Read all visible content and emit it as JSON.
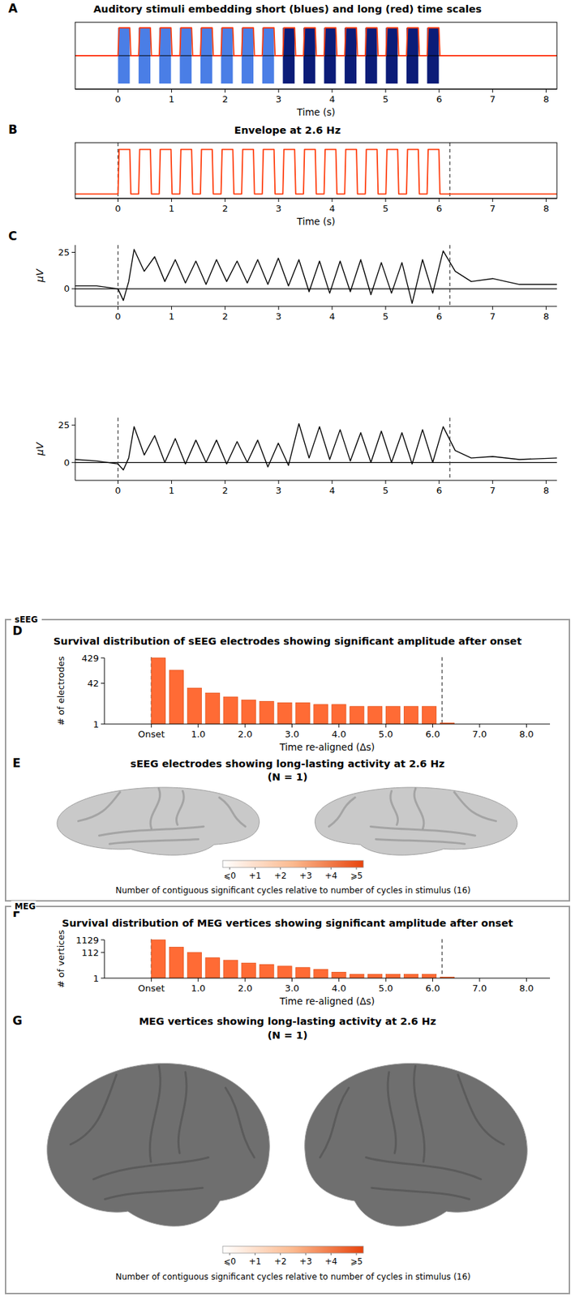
{
  "chart_data": [
    {
      "panel": "A",
      "type": "line",
      "title": "Auditory stimuli embedding short (blues) and long (red) time scales",
      "xlabel": "Time (s)",
      "x": [
        -0.8,
        0,
        0.02,
        0.22,
        0.24,
        0.385,
        0.405,
        0.605,
        0.625,
        0.77,
        0.79,
        0.99,
        1.01,
        1.155,
        1.175,
        1.375,
        1.395,
        1.54,
        1.56,
        1.76,
        1.78,
        1.925,
        1.945,
        2.145,
        2.165,
        2.31,
        2.33,
        2.53,
        2.55,
        2.695,
        2.715,
        2.915,
        2.935,
        3.08,
        3.1,
        3.3,
        3.32,
        3.465,
        3.485,
        3.685,
        3.705,
        3.85,
        3.87,
        4.07,
        4.09,
        4.235,
        4.255,
        4.455,
        4.475,
        4.62,
        4.64,
        4.84,
        4.86,
        5.005,
        5.025,
        5.225,
        5.245,
        5.39,
        5.41,
        5.61,
        5.63,
        5.775,
        5.795,
        5.995,
        6.015,
        8.2
      ],
      "values": [
        0,
        0,
        1,
        1,
        0,
        0,
        1,
        1,
        0,
        0,
        1,
        1,
        0,
        0,
        1,
        1,
        0,
        0,
        1,
        1,
        0,
        0,
        1,
        1,
        0,
        0,
        1,
        1,
        0,
        0,
        1,
        1,
        0,
        0,
        1,
        1,
        0,
        0,
        1,
        1,
        0,
        0,
        1,
        1,
        0,
        0,
        1,
        1,
        0,
        0,
        1,
        1,
        0,
        0,
        1,
        1,
        0,
        0,
        1,
        1,
        0,
        0,
        1,
        1,
        0,
        0
      ],
      "color": "#ff3d0d",
      "bursts": [
        {
          "start": 0,
          "end": 0.22,
          "color": "#4a7ee6"
        },
        {
          "start": 0.385,
          "end": 0.605,
          "color": "#4a7ee6"
        },
        {
          "start": 0.77,
          "end": 0.99,
          "color": "#4a7ee6"
        },
        {
          "start": 1.155,
          "end": 1.375,
          "color": "#4a7ee6"
        },
        {
          "start": 1.54,
          "end": 1.76,
          "color": "#4a7ee6"
        },
        {
          "start": 1.925,
          "end": 2.145,
          "color": "#4a7ee6"
        },
        {
          "start": 2.31,
          "end": 2.53,
          "color": "#4a7ee6"
        },
        {
          "start": 2.695,
          "end": 2.915,
          "color": "#4a7ee6"
        },
        {
          "start": 3.08,
          "end": 3.3,
          "color": "#0b1c78"
        },
        {
          "start": 3.465,
          "end": 3.685,
          "color": "#0b1c78"
        },
        {
          "start": 3.85,
          "end": 4.07,
          "color": "#0b1c78"
        },
        {
          "start": 4.235,
          "end": 4.455,
          "color": "#0b1c78"
        },
        {
          "start": 4.62,
          "end": 4.84,
          "color": "#0b1c78"
        },
        {
          "start": 5.005,
          "end": 5.225,
          "color": "#0b1c78"
        },
        {
          "start": 5.39,
          "end": 5.61,
          "color": "#0b1c78"
        },
        {
          "start": 5.775,
          "end": 5.995,
          "color": "#0b1c78"
        }
      ],
      "burst_range": [
        -1,
        1
      ],
      "hlines": [
        0
      ],
      "xlim": [
        -0.8,
        8.2
      ],
      "ylim": [
        -1.2,
        1.2
      ],
      "xticks": [
        0,
        1,
        2,
        3,
        4,
        5,
        6,
        7,
        8
      ],
      "tick_labels": "x"
    },
    {
      "panel": "B",
      "type": "line",
      "title": "Envelope at 2.6 Hz",
      "xlabel": "Time (s)",
      "x": [
        -0.8,
        0,
        0.02,
        0.22,
        0.24,
        0.385,
        0.405,
        0.605,
        0.625,
        0.77,
        0.79,
        0.99,
        1.01,
        1.155,
        1.175,
        1.375,
        1.395,
        1.54,
        1.56,
        1.76,
        1.78,
        1.925,
        1.945,
        2.145,
        2.165,
        2.31,
        2.33,
        2.53,
        2.55,
        2.695,
        2.715,
        2.915,
        2.935,
        3.08,
        3.1,
        3.3,
        3.32,
        3.465,
        3.485,
        3.685,
        3.705,
        3.85,
        3.87,
        4.07,
        4.09,
        4.235,
        4.255,
        4.455,
        4.475,
        4.62,
        4.64,
        4.84,
        4.86,
        5.005,
        5.025,
        5.225,
        5.245,
        5.39,
        5.41,
        5.61,
        5.63,
        5.775,
        5.795,
        5.995,
        6.015,
        8.2
      ],
      "values": [
        0,
        0,
        1,
        1,
        0,
        0,
        1,
        1,
        0,
        0,
        1,
        1,
        0,
        0,
        1,
        1,
        0,
        0,
        1,
        1,
        0,
        0,
        1,
        1,
        0,
        0,
        1,
        1,
        0,
        0,
        1,
        1,
        0,
        0,
        1,
        1,
        0,
        0,
        1,
        1,
        0,
        0,
        1,
        1,
        0,
        0,
        1,
        1,
        0,
        0,
        1,
        1,
        0,
        0,
        1,
        1,
        0,
        0,
        1,
        1,
        0,
        0,
        1,
        1,
        0,
        0
      ],
      "color": "#ff3d0d",
      "vlines": [
        0,
        6.2
      ],
      "xlim": [
        -0.8,
        8.2
      ],
      "ylim": [
        -0.1,
        1.15
      ],
      "xticks": [
        0,
        1,
        2,
        3,
        4,
        5,
        6,
        7,
        8
      ],
      "tick_labels": "x"
    },
    {
      "panel": "C",
      "type": "line",
      "ylabel": "μV",
      "x": [
        -0.8,
        -0.4,
        0,
        0.1,
        0.2,
        0.3,
        0.49,
        0.685,
        0.875,
        1.07,
        1.26,
        1.455,
        1.645,
        1.84,
        2.03,
        2.225,
        2.415,
        2.61,
        2.8,
        2.995,
        3.185,
        3.38,
        3.57,
        3.765,
        3.955,
        4.15,
        4.34,
        4.535,
        4.725,
        4.92,
        5.11,
        5.305,
        5.495,
        5.69,
        5.88,
        6.075,
        6.3,
        6.6,
        7.0,
        7.5,
        8.2
      ],
      "values": [
        2,
        2,
        0,
        -8,
        5,
        27,
        12,
        22,
        5,
        20,
        4,
        19,
        3,
        20,
        5,
        19,
        4,
        20,
        3,
        21,
        2,
        20,
        -2,
        19,
        -3,
        19,
        -2,
        20,
        -4,
        18,
        -3,
        18,
        -10,
        20,
        -3,
        26,
        12,
        5,
        7,
        3,
        3
      ],
      "color": "#000000",
      "vlines": [
        0,
        6.2
      ],
      "hlines": [
        0
      ],
      "xlim": [
        -0.8,
        8.2
      ],
      "ylim": [
        -12,
        30
      ],
      "xticks": [
        0,
        1,
        2,
        3,
        4,
        5,
        6,
        7,
        8
      ],
      "yticks": [
        0,
        25
      ]
    },
    {
      "type": "line",
      "ylabel": "μV",
      "x": [
        -0.8,
        -0.4,
        0,
        0.1,
        0.2,
        0.3,
        0.49,
        0.685,
        0.875,
        1.07,
        1.26,
        1.455,
        1.645,
        1.84,
        2.03,
        2.225,
        2.415,
        2.61,
        2.8,
        2.995,
        3.185,
        3.38,
        3.57,
        3.765,
        3.955,
        4.15,
        4.34,
        4.535,
        4.725,
        4.92,
        5.11,
        5.305,
        5.495,
        5.69,
        5.88,
        6.075,
        6.3,
        6.6,
        7.0,
        7.5,
        8.2
      ],
      "values": [
        2,
        1,
        -1,
        -5,
        3,
        24,
        5,
        18,
        0,
        16,
        -1,
        15,
        0,
        15,
        -1,
        14,
        0,
        15,
        -3,
        13,
        -2,
        26,
        3,
        24,
        2,
        22,
        1,
        20,
        0,
        21,
        0,
        20,
        -1,
        22,
        0,
        24,
        8,
        3,
        4,
        2,
        3
      ],
      "color": "#000000",
      "vlines": [
        0,
        6.2
      ],
      "hlines": [
        0
      ],
      "xlim": [
        -0.8,
        8.2
      ],
      "ylim": [
        -12,
        30
      ],
      "xticks": [
        0,
        1,
        2,
        3,
        4,
        5,
        6,
        7,
        8
      ],
      "yticks": [
        0,
        25
      ]
    },
    {
      "panel": "D",
      "section": "sEEG",
      "type": "bar",
      "title": "Survival distribution of sEEG electrodes showing significant amplitude after onset",
      "xlabel": "Time re-aligned (Δs)",
      "ylabel": "# of electrodes",
      "x": [
        0,
        0.385,
        0.77,
        1.155,
        1.54,
        1.925,
        2.31,
        2.695,
        3.08,
        3.465,
        3.85,
        4.235,
        4.62,
        5.005,
        5.39,
        5.775,
        6.16
      ],
      "values": [
        429,
        138,
        27,
        17,
        12,
        9,
        8,
        7,
        7,
        6,
        6,
        5,
        5,
        5,
        5,
        5,
        1
      ],
      "color": "#ff6b35",
      "log": "y",
      "vlines": [
        0,
        6.2
      ],
      "xlim": [
        -1,
        8.5
      ],
      "ylim": [
        1,
        429
      ],
      "xticks": [
        {
          "value": 0,
          "label": "Onset"
        },
        {
          "value": 1,
          "label": "1.0"
        },
        {
          "value": 2,
          "label": "2.0"
        },
        {
          "value": 3,
          "label": "3.0"
        },
        {
          "value": 4,
          "label": "4.0"
        },
        {
          "value": 5,
          "label": "5.0"
        },
        {
          "value": 6,
          "label": "6.0"
        },
        {
          "value": 7,
          "label": "7.0"
        },
        {
          "value": 8,
          "label": "8.0"
        }
      ],
      "yticks": [
        1,
        42,
        429
      ]
    },
    {
      "panel": "E",
      "type": "brain_map",
      "title": "sEEG electrodes showing long-lasting activity at 2.6 Hz",
      "subtitle": "(N = 1)",
      "color": "#c9c9c9",
      "colorbar_range": [
        0,
        5
      ],
      "colorbar_ticks": [
        {
          "value": 0,
          "label": "⩽0"
        },
        {
          "value": 1,
          "label": "+1"
        },
        {
          "value": 2,
          "label": "+2"
        },
        {
          "value": 3,
          "label": "+3"
        },
        {
          "value": 4,
          "label": "+4"
        },
        {
          "value": 5,
          "label": "⩾5"
        }
      ],
      "colorbar_label": "Number of contiguous significant cycles relative to number of cycles in stimulus (16)"
    },
    {
      "panel": "F",
      "section": "MEG",
      "type": "bar",
      "title": "Survival distribution of MEG vertices showing significant amplitude after onset",
      "xlabel": "Time re-aligned (Δs)",
      "ylabel": "# of vertices",
      "x": [
        0,
        0.385,
        0.77,
        1.155,
        1.54,
        1.925,
        2.31,
        2.695,
        3.08,
        3.465,
        3.85,
        4.235,
        4.62,
        5.005,
        5.39,
        5.775,
        6.16
      ],
      "values": [
        1129,
        295,
        112,
        42,
        27,
        16,
        12,
        9,
        7,
        5,
        3,
        2,
        2,
        2,
        2,
        2,
        1
      ],
      "color": "#ff6b35",
      "log": "y",
      "vlines": [
        0,
        6.2
      ],
      "xlim": [
        -1,
        8.5
      ],
      "ylim": [
        1,
        1129
      ],
      "xticks": [
        {
          "value": 0,
          "label": "Onset"
        },
        {
          "value": 1,
          "label": "1.0"
        },
        {
          "value": 2,
          "label": "2.0"
        },
        {
          "value": 3,
          "label": "3.0"
        },
        {
          "value": 4,
          "label": "4.0"
        },
        {
          "value": 5,
          "label": "5.0"
        },
        {
          "value": 6,
          "label": "6.0"
        },
        {
          "value": 7,
          "label": "7.0"
        },
        {
          "value": 8,
          "label": "8.0"
        }
      ],
      "yticks": [
        1,
        112,
        1129
      ]
    },
    {
      "panel": "G",
      "type": "brain_map",
      "title": "MEG vertices showing long-lasting activity at 2.6 Hz",
      "subtitle": "(N = 1)",
      "color": "#6f6f6f",
      "colorbar_range": [
        0,
        5
      ],
      "colorbar_ticks": [
        {
          "value": 0,
          "label": "⩽0"
        },
        {
          "value": 1,
          "label": "+1"
        },
        {
          "value": 2,
          "label": "+2"
        },
        {
          "value": 3,
          "label": "+3"
        },
        {
          "value": 4,
          "label": "+4"
        },
        {
          "value": 5,
          "label": "⩾5"
        }
      ],
      "colorbar_label": "Number of contiguous significant cycles relative to number of cycles in stimulus (16)"
    }
  ]
}
